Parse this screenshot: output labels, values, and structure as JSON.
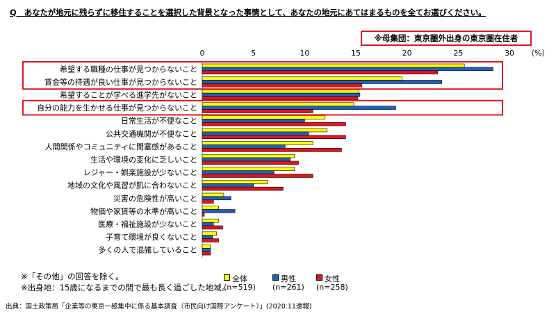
{
  "question": "Q　あなたが地元に残らずに移住することを選択した背景となった事情として、あなたの地元にあてはまるものを全てお選びください。",
  "population_note": "※母集団：東京圏外出身の東京圏在住者",
  "unit_label": "（%）",
  "notes": [
    "※「その他」の回答を除く。",
    "※出身地：15歳になるまでの間で最も長く過ごした地域。"
  ],
  "source": "出典：国土政策局「企業等の東京一極集中に係る基本調査（市民向け国際アンケート）」(2020.11速報)",
  "legend": [
    {
      "label": "全体",
      "n": "(n=519)",
      "color": "#ffff00"
    },
    {
      "label": "男性",
      "n": "(n=261)",
      "color": "#1f5fbf"
    },
    {
      "label": "女性",
      "n": "(n=258)",
      "color": "#e0161b"
    }
  ],
  "colors": {
    "highlight": "#e0161b",
    "axis": "#888888"
  },
  "chart_data": {
    "type": "bar",
    "orientation": "horizontal",
    "xlim": [
      0,
      30
    ],
    "xticks": [
      0,
      5,
      10,
      15,
      20,
      25,
      30
    ],
    "highlighted_groups": [
      [
        0,
        1
      ],
      [
        3
      ]
    ],
    "categories": [
      "希望する職種の仕事が見つからないこと",
      "賃金等の待遇が良い仕事が見つからないこと",
      "希望することが学べる進学先がないこと",
      "自分の能力を生かせる仕事が見つからないこと",
      "日常生活が不便なこと",
      "公共交通機関が不便なこと",
      "人間関係やコミュニティに閉塞感があること",
      "生活や環境の変化に乏しいこと",
      "レジャー・娯楽施設が少ないこと",
      "地域の文化や風習が肌に合わないこと",
      "災害の危険性が高いこと",
      "物価や家賃等の水準が高いこと",
      "医療・福祉施設が少ないこと",
      "子育て環境が良くないこと",
      "多くの人で混雑していること"
    ],
    "series": [
      {
        "name": "全体",
        "values": [
          25.6,
          19.5,
          15.3,
          14.8,
          12.0,
          12.2,
          10.8,
          9.0,
          9.0,
          6.4,
          2.1,
          1.6,
          1.6,
          1.4,
          0.8
        ]
      },
      {
        "name": "男性",
        "values": [
          28.4,
          23.4,
          15.4,
          18.9,
          10.0,
          10.4,
          8.1,
          8.6,
          7.0,
          5.0,
          2.8,
          3.2,
          1.1,
          1.0,
          0.8
        ]
      },
      {
        "name": "女性",
        "values": [
          23.0,
          15.6,
          15.2,
          10.8,
          14.0,
          14.0,
          13.6,
          9.4,
          10.8,
          7.9,
          1.1,
          0.2,
          2.0,
          1.6,
          0.8
        ]
      }
    ]
  }
}
